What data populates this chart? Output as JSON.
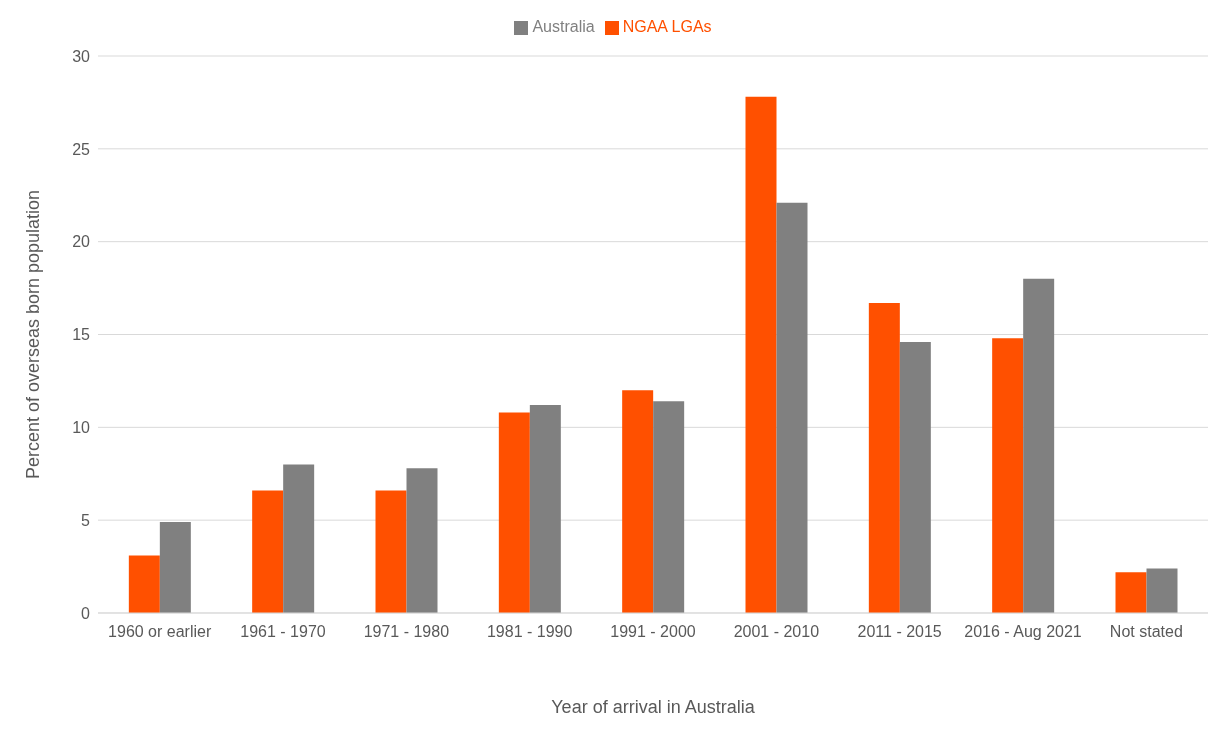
{
  "chart_data": {
    "type": "bar",
    "xlabel": "Year of arrival in Australia",
    "ylabel": "Percent of overseas born population",
    "categories": [
      "1960 or earlier",
      "1961 - 1970",
      "1971 - 1980",
      "1981 - 1990",
      "1991 - 2000",
      "2001 - 2010",
      "2011 - 2015",
      "2016 - Aug 2021",
      "Not stated"
    ],
    "series": [
      {
        "name": "NGAA LGAs",
        "color": "#ff5000",
        "values": [
          3.1,
          6.6,
          6.6,
          10.8,
          12.0,
          27.8,
          16.7,
          14.8,
          2.2
        ]
      },
      {
        "name": "Australia",
        "color": "#808080",
        "values": [
          4.9,
          8.0,
          7.8,
          11.2,
          11.4,
          22.1,
          14.6,
          18.0,
          2.4
        ]
      }
    ],
    "ylim": [
      0,
      30
    ],
    "yticks": [
      0,
      5,
      10,
      15,
      20,
      25,
      30
    ],
    "grid": "y",
    "legend": "top"
  }
}
